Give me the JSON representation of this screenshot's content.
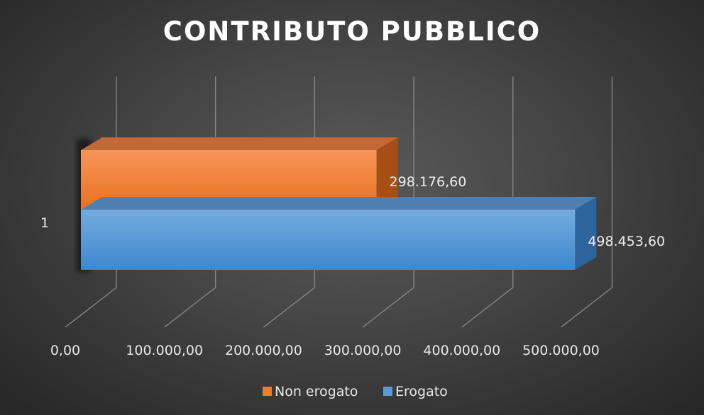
{
  "chart_data": {
    "type": "bar",
    "orientation": "horizontal",
    "style": "3d",
    "title": "CONTRIBUTO PUBBLICO",
    "categories": [
      "1"
    ],
    "series": [
      {
        "name": "Erogato",
        "values": [
          498453.6
        ],
        "label": "498.453,60",
        "color": "#5b9bd5"
      },
      {
        "name": "Non erogato",
        "values": [
          298176.6
        ],
        "label": "298.176,60",
        "color": "#ed7d31"
      }
    ],
    "xlim": [
      0,
      500000
    ],
    "xticks": [
      0,
      100000,
      200000,
      300000,
      400000,
      500000
    ],
    "xtick_labels": [
      "0,00",
      "100.000,00",
      "200.000,00",
      "300.000,00",
      "400.000,00",
      "500.000,00"
    ],
    "grid": true,
    "legend": {
      "position": "bottom",
      "entries": [
        "Non erogato",
        "Erogato"
      ]
    }
  }
}
